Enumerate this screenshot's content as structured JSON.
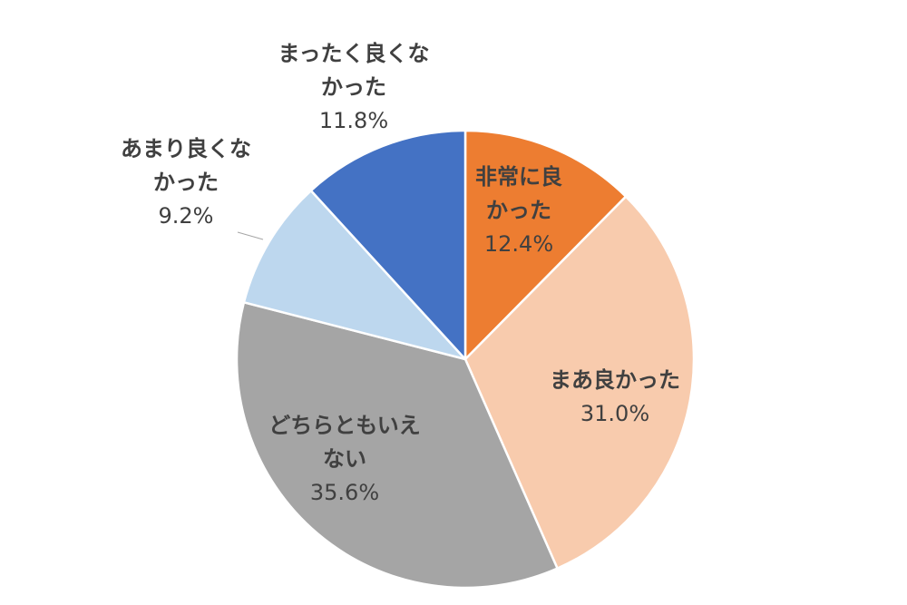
{
  "chart_data": {
    "type": "pie",
    "start_angle_deg": 0,
    "direction": "clockwise",
    "slices": [
      {
        "label_lines": [
          "非常に良",
          "かった"
        ],
        "value": 12.4,
        "value_label": "12.4%",
        "color": "#ED7D31"
      },
      {
        "label_lines": [
          "まあ良かった"
        ],
        "value": 31.0,
        "value_label": "31.0%",
        "color": "#F8CBAD"
      },
      {
        "label_lines": [
          "どちらともいえ",
          "ない"
        ],
        "value": 35.6,
        "value_label": "35.6%",
        "color": "#A5A5A5"
      },
      {
        "label_lines": [
          "あまり良くな",
          "かった"
        ],
        "value": 9.2,
        "value_label": "9.2%",
        "color": "#BDD7EE"
      },
      {
        "label_lines": [
          "まったく良くな",
          "かった"
        ],
        "value": 11.8,
        "value_label": "11.8%",
        "color": "#4472C4"
      }
    ],
    "slice_border_color": "#FFFFFF",
    "label_color": "#404040",
    "leader_line_color": "#A6A6A6",
    "legend": "none"
  }
}
